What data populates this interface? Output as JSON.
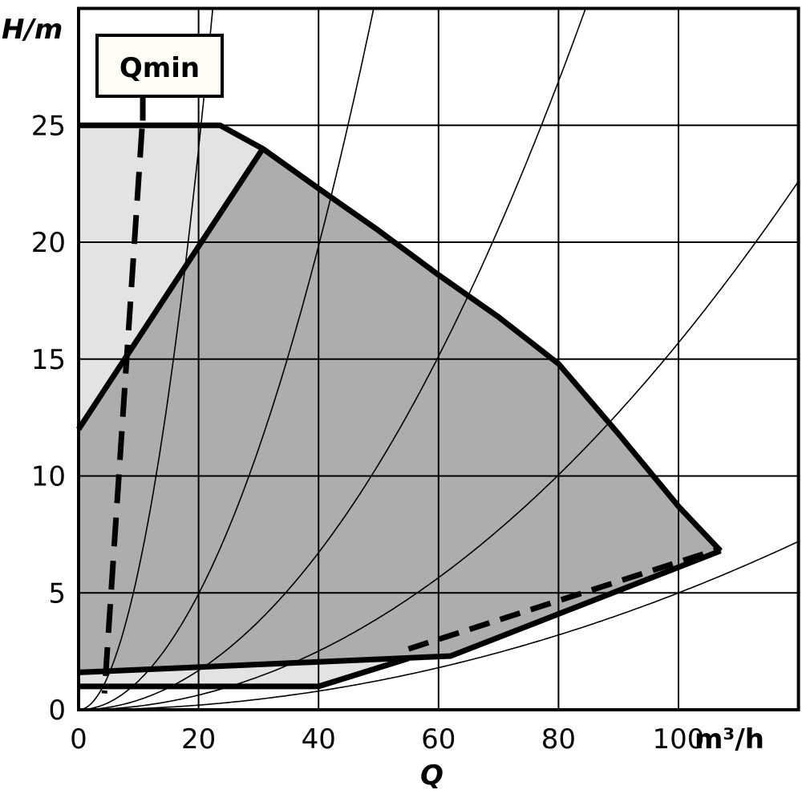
{
  "chart_data": {
    "type": "line",
    "title": "",
    "xlabel": "Q",
    "x_unit": "m³/h",
    "ylabel": "H/m",
    "xlim": [
      0,
      120
    ],
    "ylim": [
      0,
      30
    ],
    "grid": true,
    "x_ticks": [
      0,
      20,
      40,
      60,
      80,
      100
    ],
    "y_ticks": [
      0,
      5,
      10,
      15,
      20,
      25
    ],
    "colors": {
      "light_region": "#e3e3e3",
      "dark_region": "#adadad",
      "lines": "#000000",
      "label_box": "#fffdf6"
    },
    "annotation": {
      "label": "Qmin",
      "line": [
        [
          10.7,
          25.2
        ],
        [
          4.3,
          0.7
        ]
      ]
    },
    "light_region_top": [
      [
        0,
        25
      ],
      [
        23.6,
        25
      ],
      [
        30.7,
        24
      ],
      [
        0,
        12
      ]
    ],
    "light_region_bottom": [
      [
        0,
        1.6
      ],
      [
        55,
        2.2
      ],
      [
        40,
        1
      ],
      [
        0,
        1
      ]
    ],
    "dark_region": [
      [
        0,
        12
      ],
      [
        30.7,
        24
      ],
      [
        40,
        22.3
      ],
      [
        50,
        20.5
      ],
      [
        60,
        18.6
      ],
      [
        70,
        16.8
      ],
      [
        80,
        14.8
      ],
      [
        90,
        11.8
      ],
      [
        100,
        8.7
      ],
      [
        107,
        6.8
      ],
      [
        62,
        2.3
      ],
      [
        0,
        1.6
      ]
    ],
    "max_curve": [
      [
        0,
        25
      ],
      [
        23.6,
        25
      ],
      [
        30.7,
        24
      ],
      [
        40,
        22.3
      ],
      [
        50,
        20.5
      ],
      [
        60,
        18.6
      ],
      [
        70,
        16.8
      ],
      [
        80,
        14.8
      ],
      [
        90,
        11.8
      ],
      [
        100,
        8.7
      ],
      [
        107,
        6.8
      ]
    ],
    "min_curve_upper": [
      [
        0,
        1.6
      ],
      [
        62,
        2.3
      ],
      [
        107,
        6.8
      ]
    ],
    "min_curve_lower": [
      [
        0,
        1
      ],
      [
        40,
        1
      ],
      [
        55,
        2.2
      ]
    ],
    "dashed_curve": [
      [
        55,
        2.6
      ],
      [
        107,
        6.9
      ]
    ],
    "variable_speed_line": [
      [
        0,
        12
      ],
      [
        30.7,
        24
      ]
    ],
    "system_curves_k": [
      0.06,
      0.0124,
      0.0042,
      0.00157,
      0.0005
    ]
  }
}
